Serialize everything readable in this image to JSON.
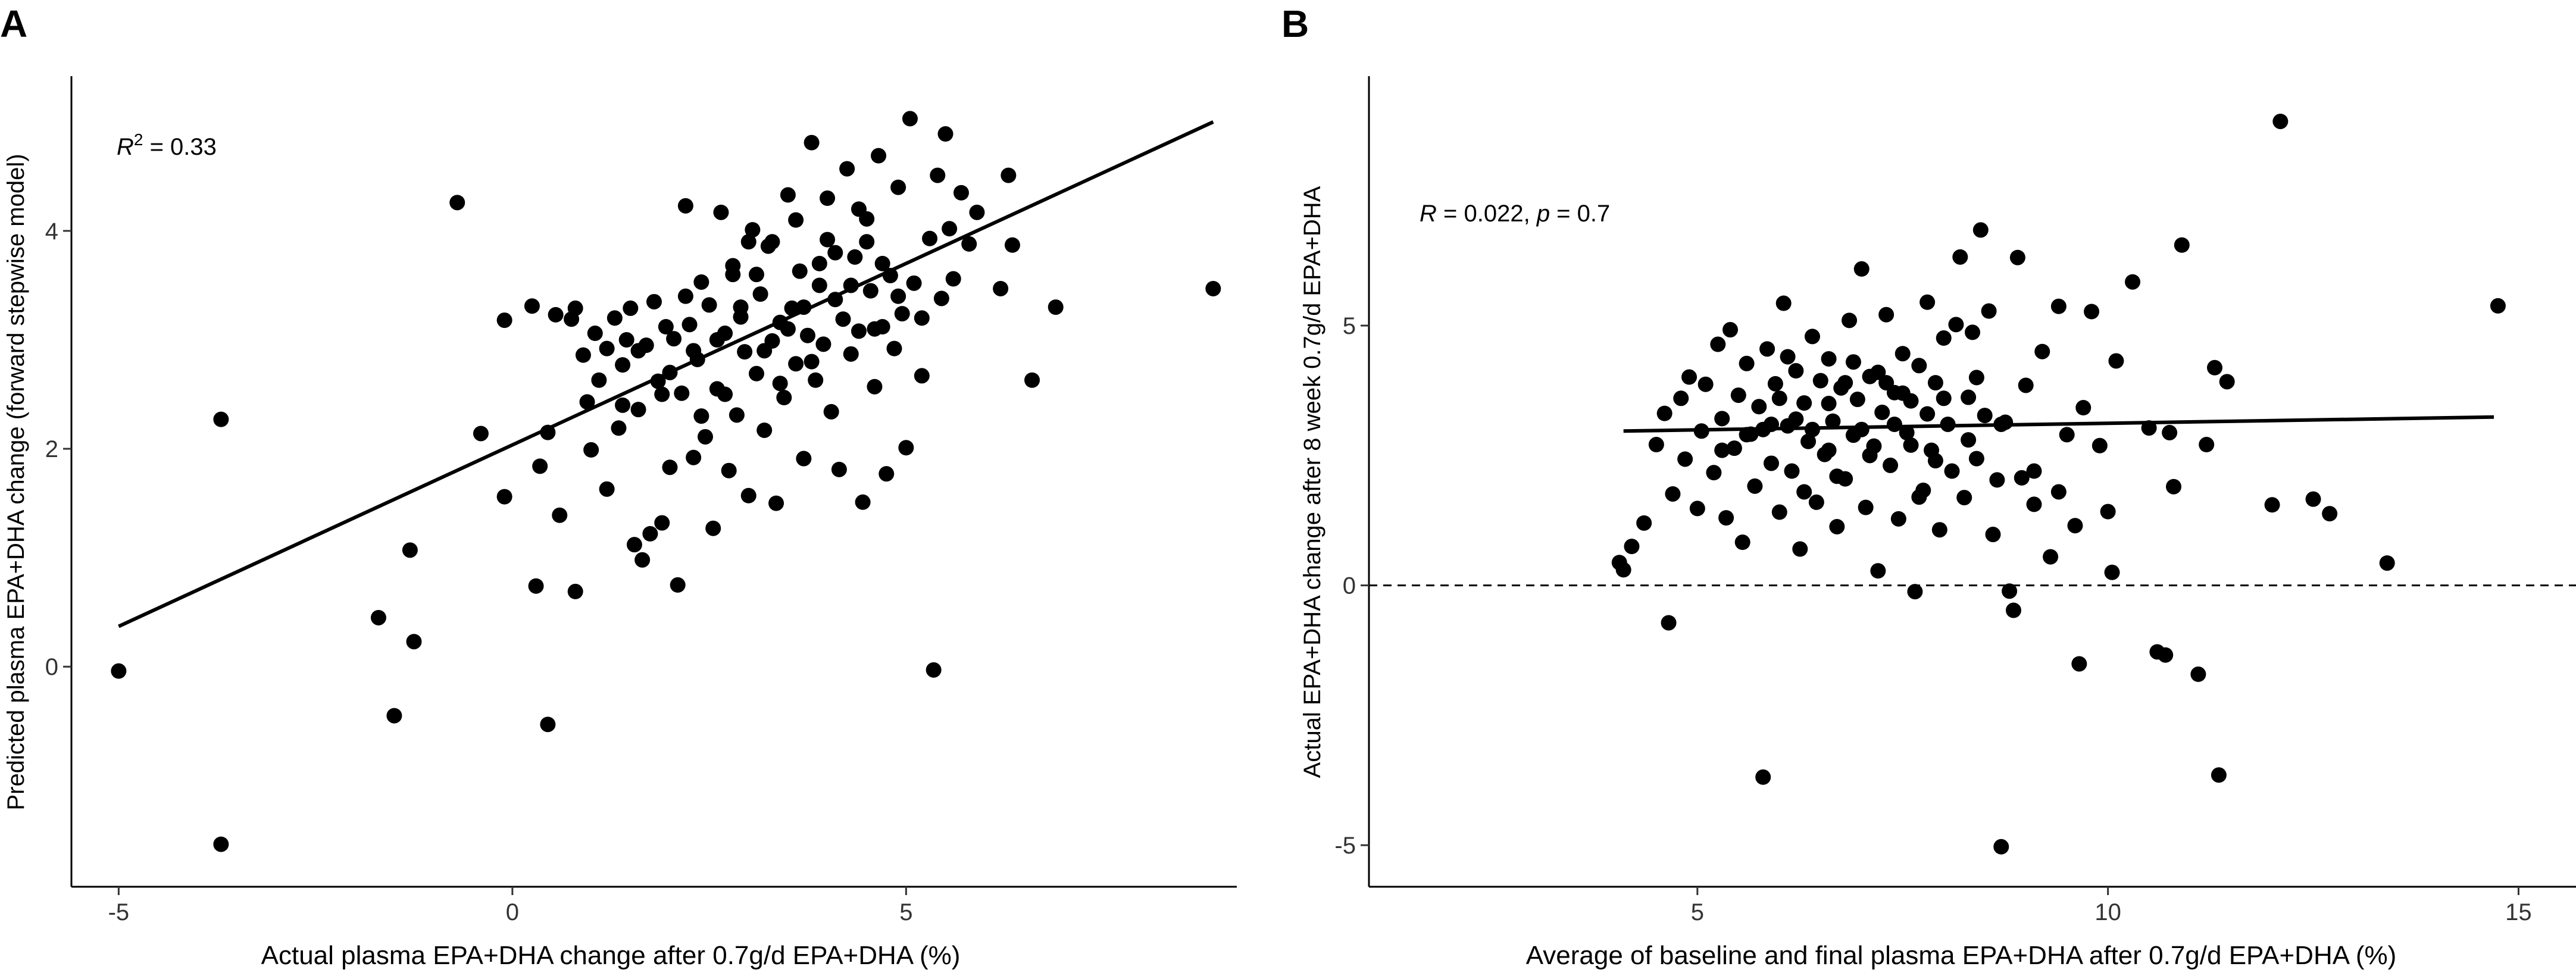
{
  "chart_data": [
    {
      "panel": "A",
      "type": "scatter",
      "xlabel": "Actual plasma EPA+DHA change after 0.7g/d EPA+DHA (%)",
      "ylabel": "Predicted plasma EPA+DHA change (forward stepwise model)",
      "xlim": [
        -5.6,
        9.2
      ],
      "ylim": [
        -2.02,
        5.42
      ],
      "xticks": [
        -5,
        0,
        5
      ],
      "yticks": [
        0,
        2,
        4
      ],
      "annotation": {
        "symbol": "R",
        "superscript": "2",
        "text": " = 0.33"
      },
      "fit_line": {
        "x": [
          -5.0,
          8.9
        ],
        "y": [
          0.37,
          5.0
        ]
      },
      "points": [
        [
          -5.0,
          -0.04
        ],
        [
          -3.7,
          2.27
        ],
        [
          -3.7,
          -1.63
        ],
        [
          -1.7,
          0.45
        ],
        [
          -1.5,
          -0.45
        ],
        [
          -1.3,
          1.07
        ],
        [
          -1.25,
          0.23
        ],
        [
          -0.7,
          4.26
        ],
        [
          -0.4,
          2.14
        ],
        [
          -0.1,
          3.18
        ],
        [
          -0.1,
          1.56
        ],
        [
          0.25,
          3.31
        ],
        [
          0.3,
          0.74
        ],
        [
          0.35,
          1.84
        ],
        [
          0.45,
          -0.53
        ],
        [
          0.45,
          2.15
        ],
        [
          0.55,
          3.23
        ],
        [
          0.6,
          1.39
        ],
        [
          0.75,
          3.19
        ],
        [
          0.8,
          3.29
        ],
        [
          0.8,
          0.69
        ],
        [
          0.9,
          2.86
        ],
        [
          0.95,
          2.43
        ],
        [
          1.0,
          1.99
        ],
        [
          1.05,
          3.06
        ],
        [
          1.1,
          2.63
        ],
        [
          1.2,
          2.92
        ],
        [
          1.2,
          1.63
        ],
        [
          1.3,
          3.2
        ],
        [
          1.35,
          2.19
        ],
        [
          1.4,
          2.77
        ],
        [
          1.45,
          3.0
        ],
        [
          1.5,
          3.29
        ],
        [
          1.55,
          1.12
        ],
        [
          1.6,
          2.36
        ],
        [
          1.65,
          0.98
        ],
        [
          1.7,
          2.95
        ],
        [
          1.75,
          1.22
        ],
        [
          1.8,
          3.35
        ],
        [
          1.85,
          2.62
        ],
        [
          1.9,
          1.32
        ],
        [
          1.95,
          3.12
        ],
        [
          2.0,
          1.83
        ],
        [
          2.05,
          3.01
        ],
        [
          2.1,
          0.75
        ],
        [
          2.15,
          2.51
        ],
        [
          2.2,
          4.23
        ],
        [
          2.25,
          3.14
        ],
        [
          2.3,
          1.92
        ],
        [
          2.35,
          2.82
        ],
        [
          2.4,
          3.53
        ],
        [
          2.45,
          2.11
        ],
        [
          2.5,
          3.32
        ],
        [
          2.55,
          1.27
        ],
        [
          2.6,
          2.55
        ],
        [
          2.65,
          4.17
        ],
        [
          2.7,
          3.06
        ],
        [
          2.75,
          1.8
        ],
        [
          2.8,
          3.68
        ],
        [
          2.85,
          2.31
        ],
        [
          2.9,
          3.21
        ],
        [
          2.95,
          2.89
        ],
        [
          3.0,
          1.57
        ],
        [
          3.05,
          4.01
        ],
        [
          3.1,
          2.69
        ],
        [
          3.15,
          3.42
        ],
        [
          3.2,
          2.17
        ],
        [
          3.25,
          3.86
        ],
        [
          3.3,
          2.99
        ],
        [
          3.35,
          1.5
        ],
        [
          3.4,
          3.16
        ],
        [
          3.45,
          2.47
        ],
        [
          3.5,
          4.33
        ],
        [
          3.55,
          3.29
        ],
        [
          3.6,
          2.78
        ],
        [
          3.65,
          3.63
        ],
        [
          3.7,
          1.91
        ],
        [
          3.75,
          3.04
        ],
        [
          3.8,
          4.81
        ],
        [
          3.85,
          2.63
        ],
        [
          3.9,
          3.5
        ],
        [
          3.95,
          2.96
        ],
        [
          4.0,
          3.92
        ],
        [
          4.05,
          2.34
        ],
        [
          4.1,
          3.37
        ],
        [
          4.15,
          1.81
        ],
        [
          4.2,
          3.19
        ],
        [
          4.25,
          4.57
        ],
        [
          4.3,
          2.87
        ],
        [
          4.35,
          3.76
        ],
        [
          4.4,
          3.08
        ],
        [
          4.45,
          1.51
        ],
        [
          4.5,
          4.11
        ],
        [
          4.55,
          3.45
        ],
        [
          4.6,
          2.57
        ],
        [
          4.65,
          4.69
        ],
        [
          4.7,
          3.12
        ],
        [
          4.75,
          1.77
        ],
        [
          4.8,
          3.59
        ],
        [
          4.85,
          2.92
        ],
        [
          4.9,
          4.4
        ],
        [
          4.95,
          3.24
        ],
        [
          5.0,
          2.01
        ],
        [
          5.05,
          5.03
        ],
        [
          5.1,
          3.52
        ],
        [
          5.2,
          2.67
        ],
        [
          5.3,
          3.93
        ],
        [
          5.35,
          -0.03
        ],
        [
          5.4,
          4.51
        ],
        [
          5.45,
          3.38
        ],
        [
          5.5,
          4.89
        ],
        [
          5.55,
          4.02
        ],
        [
          5.6,
          3.56
        ],
        [
          5.7,
          4.35
        ],
        [
          5.8,
          3.88
        ],
        [
          5.9,
          4.17
        ],
        [
          6.2,
          3.47
        ],
        [
          6.3,
          4.51
        ],
        [
          6.35,
          3.87
        ],
        [
          6.6,
          2.63
        ],
        [
          6.9,
          3.3
        ],
        [
          8.9,
          3.47
        ],
        [
          2.0,
          2.7
        ],
        [
          2.3,
          2.9
        ],
        [
          2.6,
          3.0
        ],
        [
          2.9,
          3.3
        ],
        [
          3.1,
          3.6
        ],
        [
          3.3,
          3.9
        ],
        [
          3.5,
          3.1
        ],
        [
          3.7,
          3.3
        ],
        [
          3.9,
          3.7
        ],
        [
          4.1,
          3.8
        ],
        [
          4.3,
          3.5
        ],
        [
          4.5,
          3.9
        ],
        [
          4.7,
          3.7
        ],
        [
          4.9,
          3.4
        ],
        [
          3.2,
          2.9
        ],
        [
          3.6,
          4.1
        ],
        [
          4.0,
          4.3
        ],
        [
          4.4,
          4.2
        ],
        [
          2.8,
          3.6
        ],
        [
          3.4,
          2.6
        ],
        [
          1.6,
          2.9
        ],
        [
          1.4,
          2.4
        ],
        [
          2.2,
          3.4
        ],
        [
          2.7,
          2.5
        ],
        [
          3.8,
          2.8
        ],
        [
          4.6,
          3.1
        ],
        [
          5.2,
          3.2
        ],
        [
          1.9,
          2.5
        ],
        [
          2.4,
          2.3
        ],
        [
          3.0,
          3.9
        ]
      ]
    },
    {
      "panel": "B",
      "type": "scatter",
      "xlabel": "Average of baseline and final plasma EPA+DHA after 0.7g/d EPA+DHA (%)",
      "ylabel": "Actual EPA+DHA change after 8 week 0.7g/d EPA+DHA",
      "xlim": [
        1.0,
        15.7
      ],
      "ylim": [
        -5.8,
        9.8
      ],
      "xticks": [
        5,
        10,
        15
      ],
      "yticks": [
        -5,
        0,
        5
      ],
      "annotation": {
        "symbol": "R",
        "text": " = 0.022, ",
        "symbol2": "p",
        "text2": " = 0.7"
      },
      "fit_line": {
        "x": [
          4.1,
          14.7
        ],
        "y": [
          2.97,
          3.24
        ]
      },
      "reference_line": {
        "y": 0,
        "style": "dashed"
      },
      "points": [
        [
          4.05,
          0.44
        ],
        [
          4.1,
          0.3
        ],
        [
          4.2,
          0.75
        ],
        [
          4.35,
          1.2
        ],
        [
          4.5,
          2.71
        ],
        [
          4.6,
          3.31
        ],
        [
          4.65,
          -0.72
        ],
        [
          4.7,
          1.76
        ],
        [
          4.8,
          3.6
        ],
        [
          4.85,
          2.43
        ],
        [
          4.9,
          4.01
        ],
        [
          5.0,
          1.48
        ],
        [
          5.05,
          2.97
        ],
        [
          5.1,
          3.87
        ],
        [
          5.2,
          2.17
        ],
        [
          5.25,
          4.64
        ],
        [
          5.3,
          3.21
        ],
        [
          5.35,
          1.3
        ],
        [
          5.4,
          4.92
        ],
        [
          5.45,
          2.64
        ],
        [
          5.5,
          3.66
        ],
        [
          5.55,
          0.83
        ],
        [
          5.6,
          4.27
        ],
        [
          5.65,
          2.91
        ],
        [
          5.7,
          1.91
        ],
        [
          5.75,
          3.44
        ],
        [
          5.8,
          -3.69
        ],
        [
          5.85,
          4.55
        ],
        [
          5.9,
          2.35
        ],
        [
          5.95,
          3.88
        ],
        [
          6.0,
          1.41
        ],
        [
          6.05,
          5.43
        ],
        [
          6.1,
          3.07
        ],
        [
          6.15,
          2.2
        ],
        [
          6.2,
          4.13
        ],
        [
          6.25,
          0.7
        ],
        [
          6.3,
          3.51
        ],
        [
          6.35,
          2.77
        ],
        [
          6.4,
          4.79
        ],
        [
          6.45,
          1.6
        ],
        [
          6.5,
          3.94
        ],
        [
          6.55,
          2.52
        ],
        [
          6.6,
          4.36
        ],
        [
          6.65,
          3.16
        ],
        [
          6.7,
          1.13
        ],
        [
          6.75,
          3.8
        ],
        [
          6.8,
          2.05
        ],
        [
          6.85,
          5.1
        ],
        [
          6.9,
          2.89
        ],
        [
          6.95,
          3.58
        ],
        [
          7.0,
          6.09
        ],
        [
          7.05,
          1.5
        ],
        [
          7.1,
          4.02
        ],
        [
          7.15,
          2.68
        ],
        [
          7.2,
          0.28
        ],
        [
          7.25,
          3.33
        ],
        [
          7.3,
          5.21
        ],
        [
          7.35,
          2.31
        ],
        [
          7.4,
          3.71
        ],
        [
          7.45,
          1.28
        ],
        [
          7.5,
          4.46
        ],
        [
          7.55,
          2.94
        ],
        [
          7.6,
          3.55
        ],
        [
          7.65,
          -0.12
        ],
        [
          7.7,
          4.23
        ],
        [
          7.75,
          1.83
        ],
        [
          7.8,
          5.45
        ],
        [
          7.85,
          2.6
        ],
        [
          7.9,
          3.9
        ],
        [
          7.95,
          1.07
        ],
        [
          8.0,
          4.76
        ],
        [
          8.05,
          3.1
        ],
        [
          8.1,
          2.2
        ],
        [
          8.15,
          5.02
        ],
        [
          8.2,
          6.32
        ],
        [
          8.25,
          1.69
        ],
        [
          8.3,
          3.62
        ],
        [
          8.35,
          4.87
        ],
        [
          8.4,
          2.44
        ],
        [
          8.45,
          6.84
        ],
        [
          8.5,
          3.27
        ],
        [
          8.55,
          5.28
        ],
        [
          8.6,
          0.98
        ],
        [
          8.65,
          2.03
        ],
        [
          8.7,
          -5.03
        ],
        [
          8.75,
          3.14
        ],
        [
          8.8,
          -0.11
        ],
        [
          8.85,
          -0.48
        ],
        [
          8.9,
          6.31
        ],
        [
          8.95,
          2.07
        ],
        [
          9.0,
          3.85
        ],
        [
          9.1,
          1.56
        ],
        [
          9.2,
          4.5
        ],
        [
          9.3,
          0.55
        ],
        [
          9.4,
          5.37
        ],
        [
          9.5,
          2.9
        ],
        [
          9.6,
          1.15
        ],
        [
          9.65,
          -1.51
        ],
        [
          9.7,
          3.42
        ],
        [
          9.8,
          5.27
        ],
        [
          9.9,
          2.69
        ],
        [
          10.0,
          1.42
        ],
        [
          10.05,
          0.25
        ],
        [
          10.1,
          4.32
        ],
        [
          10.3,
          5.84
        ],
        [
          10.5,
          3.03
        ],
        [
          10.6,
          -1.28
        ],
        [
          10.7,
          -1.34
        ],
        [
          10.75,
          2.94
        ],
        [
          10.8,
          1.9
        ],
        [
          10.9,
          6.55
        ],
        [
          11.1,
          -1.71
        ],
        [
          11.2,
          2.71
        ],
        [
          11.3,
          4.19
        ],
        [
          11.35,
          -3.65
        ],
        [
          11.45,
          3.92
        ],
        [
          12.0,
          1.55
        ],
        [
          12.1,
          8.93
        ],
        [
          12.5,
          1.66
        ],
        [
          12.7,
          1.38
        ],
        [
          13.4,
          0.43
        ],
        [
          14.75,
          5.38
        ],
        [
          6.2,
          3.2
        ],
        [
          6.6,
          3.5
        ],
        [
          7.0,
          3.0
        ],
        [
          7.4,
          3.1
        ],
        [
          7.8,
          3.3
        ],
        [
          6.8,
          3.9
        ],
        [
          7.2,
          4.1
        ],
        [
          7.6,
          2.7
        ],
        [
          8.0,
          3.6
        ],
        [
          6.4,
          3.0
        ],
        [
          5.9,
          3.1
        ],
        [
          7.1,
          2.5
        ],
        [
          7.5,
          3.7
        ],
        [
          6.9,
          4.3
        ],
        [
          5.6,
          2.9
        ],
        [
          8.3,
          2.8
        ],
        [
          6.0,
          3.6
        ],
        [
          7.3,
          3.9
        ],
        [
          5.8,
          3.0
        ],
        [
          6.6,
          2.6
        ],
        [
          8.7,
          3.1
        ],
        [
          9.1,
          2.2
        ],
        [
          9.4,
          1.8
        ],
        [
          6.3,
          1.8
        ],
        [
          7.7,
          1.7
        ],
        [
          5.3,
          2.6
        ],
        [
          8.4,
          4.0
        ],
        [
          6.7,
          2.1
        ],
        [
          7.9,
          2.4
        ],
        [
          6.1,
          4.4
        ]
      ]
    }
  ]
}
